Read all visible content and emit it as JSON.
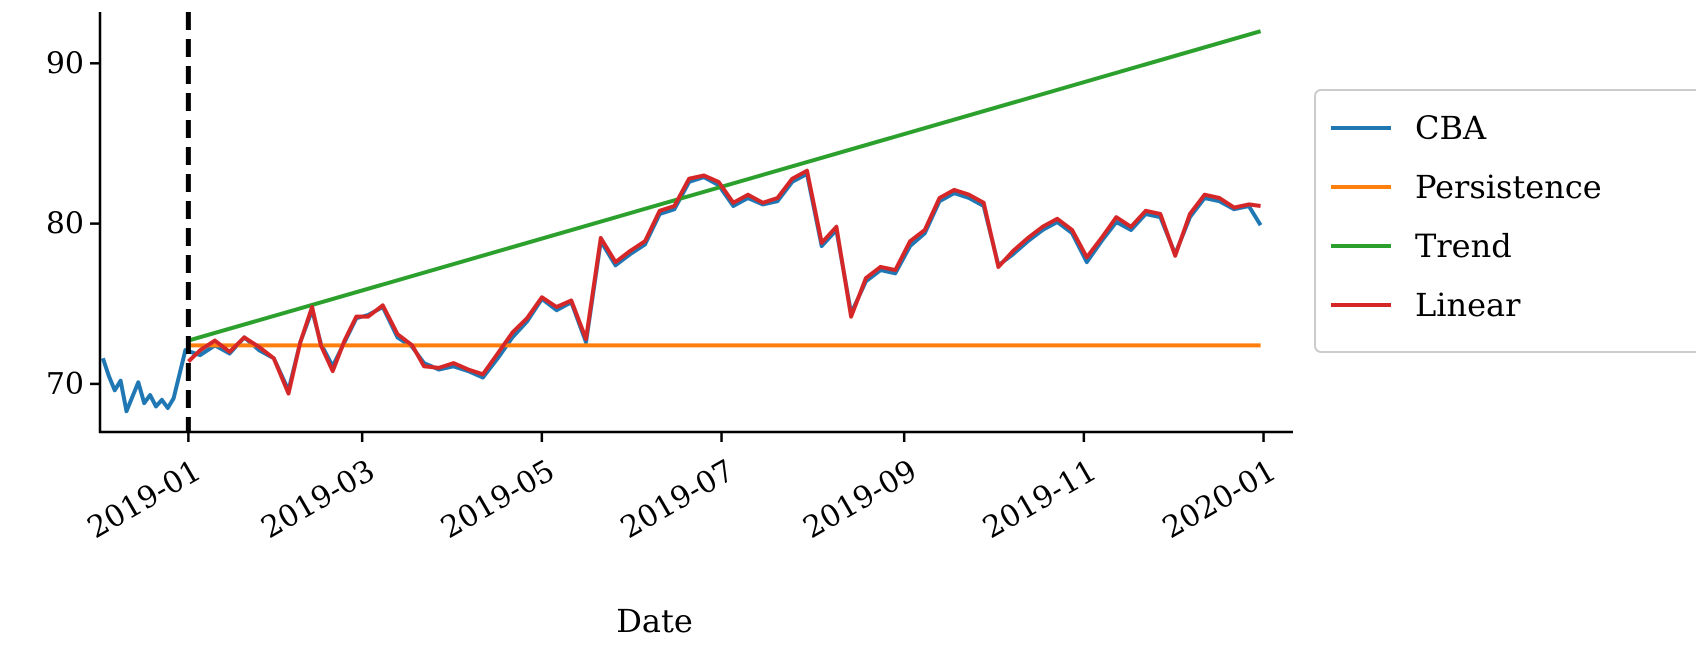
{
  "chart_data": {
    "type": "line",
    "xlabel": "Date",
    "ylabel": "",
    "title": "",
    "xlim": [
      "2018-12-02",
      "2020-01-11"
    ],
    "ylim": [
      67,
      93.2
    ],
    "x_ticks": [
      {
        "date": "2019-01-01",
        "label": "2019-01"
      },
      {
        "date": "2019-03-01",
        "label": "2019-03"
      },
      {
        "date": "2019-05-01",
        "label": "2019-05"
      },
      {
        "date": "2019-07-01",
        "label": "2019-07"
      },
      {
        "date": "2019-09-01",
        "label": "2019-09"
      },
      {
        "date": "2019-11-01",
        "label": "2019-11"
      },
      {
        "date": "2020-01-01",
        "label": "2020-01"
      }
    ],
    "y_ticks": [
      {
        "value": 70,
        "label": "70"
      },
      {
        "value": 80,
        "label": "80"
      },
      {
        "value": 90,
        "label": "90"
      }
    ],
    "grid": false,
    "legend_position": "right",
    "forecast_start_marker": {
      "date": "2019-01-01",
      "style": "dashed",
      "color": "#000000"
    },
    "series": [
      {
        "name": "CBA",
        "color": "#1f77b4",
        "points": [
          [
            "2018-12-03",
            71.6
          ],
          [
            "2018-12-05",
            70.5
          ],
          [
            "2018-12-07",
            69.6
          ],
          [
            "2018-12-09",
            70.2
          ],
          [
            "2018-12-11",
            68.3
          ],
          [
            "2018-12-13",
            69.2
          ],
          [
            "2018-12-15",
            70.1
          ],
          [
            "2018-12-17",
            68.8
          ],
          [
            "2018-12-19",
            69.3
          ],
          [
            "2018-12-21",
            68.6
          ],
          [
            "2018-12-23",
            69.0
          ],
          [
            "2018-12-25",
            68.5
          ],
          [
            "2018-12-27",
            69.1
          ],
          [
            "2018-12-29",
            70.6
          ],
          [
            "2018-12-31",
            72.1
          ],
          [
            "2019-01-05",
            71.8
          ],
          [
            "2019-01-10",
            72.4
          ],
          [
            "2019-01-15",
            71.9
          ],
          [
            "2019-01-20",
            72.9
          ],
          [
            "2019-01-25",
            72.1
          ],
          [
            "2019-01-30",
            71.6
          ],
          [
            "2019-02-04",
            69.6
          ],
          [
            "2019-02-08",
            72.6
          ],
          [
            "2019-02-12",
            74.6
          ],
          [
            "2019-02-15",
            72.5
          ],
          [
            "2019-02-19",
            71.1
          ],
          [
            "2019-02-23",
            72.6
          ],
          [
            "2019-02-27",
            74.1
          ],
          [
            "2019-03-03",
            74.3
          ],
          [
            "2019-03-08",
            74.8
          ],
          [
            "2019-03-13",
            72.9
          ],
          [
            "2019-03-18",
            72.3
          ],
          [
            "2019-03-22",
            71.3
          ],
          [
            "2019-03-27",
            70.9
          ],
          [
            "2019-04-01",
            71.1
          ],
          [
            "2019-04-06",
            70.8
          ],
          [
            "2019-04-11",
            70.4
          ],
          [
            "2019-04-16",
            71.6
          ],
          [
            "2019-04-21",
            72.9
          ],
          [
            "2019-04-26",
            73.9
          ],
          [
            "2019-05-01",
            75.3
          ],
          [
            "2019-05-06",
            74.6
          ],
          [
            "2019-05-11",
            75.1
          ],
          [
            "2019-05-16",
            72.6
          ],
          [
            "2019-05-21",
            78.9
          ],
          [
            "2019-05-26",
            77.4
          ],
          [
            "2019-05-31",
            78.1
          ],
          [
            "2019-06-05",
            78.7
          ],
          [
            "2019-06-10",
            80.6
          ],
          [
            "2019-06-15",
            80.9
          ],
          [
            "2019-06-20",
            82.6
          ],
          [
            "2019-06-25",
            82.9
          ],
          [
            "2019-06-30",
            82.4
          ],
          [
            "2019-07-05",
            81.1
          ],
          [
            "2019-07-10",
            81.6
          ],
          [
            "2019-07-15",
            81.2
          ],
          [
            "2019-07-20",
            81.4
          ],
          [
            "2019-07-25",
            82.6
          ],
          [
            "2019-07-30",
            83.1
          ],
          [
            "2019-08-04",
            78.6
          ],
          [
            "2019-08-09",
            79.6
          ],
          [
            "2019-08-14",
            74.4
          ],
          [
            "2019-08-19",
            76.4
          ],
          [
            "2019-08-24",
            77.1
          ],
          [
            "2019-08-29",
            76.9
          ],
          [
            "2019-09-03",
            78.6
          ],
          [
            "2019-09-08",
            79.4
          ],
          [
            "2019-09-13",
            81.4
          ],
          [
            "2019-09-18",
            81.9
          ],
          [
            "2019-09-23",
            81.6
          ],
          [
            "2019-09-28",
            81.1
          ],
          [
            "2019-10-03",
            77.4
          ],
          [
            "2019-10-08",
            78.1
          ],
          [
            "2019-10-13",
            78.9
          ],
          [
            "2019-10-18",
            79.6
          ],
          [
            "2019-10-23",
            80.1
          ],
          [
            "2019-10-28",
            79.4
          ],
          [
            "2019-11-02",
            77.6
          ],
          [
            "2019-11-07",
            78.9
          ],
          [
            "2019-11-12",
            80.1
          ],
          [
            "2019-11-17",
            79.6
          ],
          [
            "2019-11-22",
            80.6
          ],
          [
            "2019-11-27",
            80.4
          ],
          [
            "2019-12-02",
            78.1
          ],
          [
            "2019-12-07",
            80.4
          ],
          [
            "2019-12-12",
            81.6
          ],
          [
            "2019-12-17",
            81.4
          ],
          [
            "2019-12-22",
            80.9
          ],
          [
            "2019-12-27",
            81.1
          ],
          [
            "2019-12-31",
            79.9
          ]
        ]
      },
      {
        "name": "Persistence",
        "color": "#ff7f0e",
        "points": [
          [
            "2019-01-01",
            72.4
          ],
          [
            "2019-12-31",
            72.4
          ]
        ]
      },
      {
        "name": "Trend",
        "color": "#2ca02c",
        "points": [
          [
            "2019-01-01",
            72.7
          ],
          [
            "2019-12-31",
            92.0
          ]
        ]
      },
      {
        "name": "Linear",
        "color": "#d62728",
        "points": [
          [
            "2019-01-01",
            71.4
          ],
          [
            "2019-01-05",
            72.1
          ],
          [
            "2019-01-10",
            72.7
          ],
          [
            "2019-01-15",
            72.0
          ],
          [
            "2019-01-20",
            72.9
          ],
          [
            "2019-01-25",
            72.3
          ],
          [
            "2019-01-30",
            71.6
          ],
          [
            "2019-02-04",
            69.4
          ],
          [
            "2019-02-08",
            72.6
          ],
          [
            "2019-02-12",
            74.8
          ],
          [
            "2019-02-15",
            72.4
          ],
          [
            "2019-02-19",
            70.8
          ],
          [
            "2019-02-23",
            72.7
          ],
          [
            "2019-02-27",
            74.2
          ],
          [
            "2019-03-03",
            74.2
          ],
          [
            "2019-03-08",
            74.9
          ],
          [
            "2019-03-13",
            73.1
          ],
          [
            "2019-03-18",
            72.4
          ],
          [
            "2019-03-22",
            71.1
          ],
          [
            "2019-03-27",
            71.0
          ],
          [
            "2019-04-01",
            71.3
          ],
          [
            "2019-04-06",
            70.9
          ],
          [
            "2019-04-11",
            70.6
          ],
          [
            "2019-04-16",
            71.9
          ],
          [
            "2019-04-21",
            73.2
          ],
          [
            "2019-04-26",
            74.1
          ],
          [
            "2019-05-01",
            75.4
          ],
          [
            "2019-05-06",
            74.8
          ],
          [
            "2019-05-11",
            75.2
          ],
          [
            "2019-05-16",
            72.8
          ],
          [
            "2019-05-21",
            79.1
          ],
          [
            "2019-05-26",
            77.6
          ],
          [
            "2019-05-31",
            78.3
          ],
          [
            "2019-06-05",
            78.9
          ],
          [
            "2019-06-10",
            80.8
          ],
          [
            "2019-06-15",
            81.1
          ],
          [
            "2019-06-20",
            82.8
          ],
          [
            "2019-06-25",
            83.0
          ],
          [
            "2019-06-30",
            82.6
          ],
          [
            "2019-07-05",
            81.3
          ],
          [
            "2019-07-10",
            81.8
          ],
          [
            "2019-07-15",
            81.3
          ],
          [
            "2019-07-20",
            81.6
          ],
          [
            "2019-07-25",
            82.8
          ],
          [
            "2019-07-30",
            83.3
          ],
          [
            "2019-08-04",
            78.8
          ],
          [
            "2019-08-09",
            79.8
          ],
          [
            "2019-08-14",
            74.2
          ],
          [
            "2019-08-19",
            76.6
          ],
          [
            "2019-08-24",
            77.3
          ],
          [
            "2019-08-29",
            77.1
          ],
          [
            "2019-09-03",
            78.9
          ],
          [
            "2019-09-08",
            79.6
          ],
          [
            "2019-09-13",
            81.6
          ],
          [
            "2019-09-18",
            82.1
          ],
          [
            "2019-09-23",
            81.8
          ],
          [
            "2019-09-28",
            81.3
          ],
          [
            "2019-10-03",
            77.3
          ],
          [
            "2019-10-08",
            78.3
          ],
          [
            "2019-10-13",
            79.1
          ],
          [
            "2019-10-18",
            79.8
          ],
          [
            "2019-10-23",
            80.3
          ],
          [
            "2019-10-28",
            79.6
          ],
          [
            "2019-11-02",
            77.9
          ],
          [
            "2019-11-07",
            79.1
          ],
          [
            "2019-11-12",
            80.4
          ],
          [
            "2019-11-17",
            79.8
          ],
          [
            "2019-11-22",
            80.8
          ],
          [
            "2019-11-27",
            80.6
          ],
          [
            "2019-12-02",
            78.0
          ],
          [
            "2019-12-07",
            80.6
          ],
          [
            "2019-12-12",
            81.8
          ],
          [
            "2019-12-17",
            81.6
          ],
          [
            "2019-12-22",
            81.0
          ],
          [
            "2019-12-27",
            81.2
          ],
          [
            "2019-12-31",
            81.1
          ]
        ]
      }
    ]
  }
}
